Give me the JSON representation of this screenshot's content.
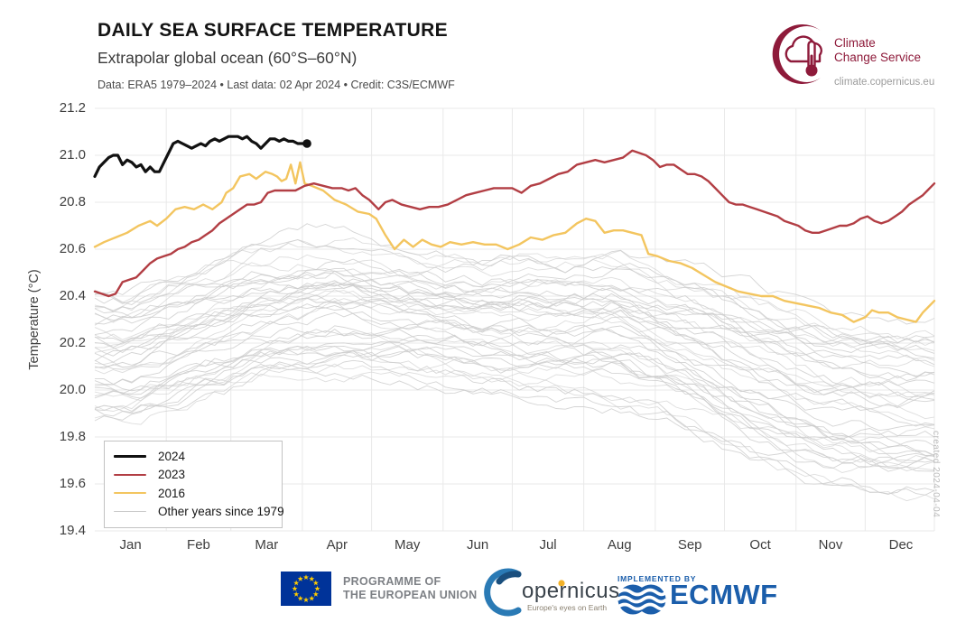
{
  "chart_data": {
    "type": "line",
    "title": "DAILY SEA SURFACE TEMPERATURE",
    "subtitle": "Extrapolar global ocean (60°S–60°N)",
    "meta": "Data: ERA5 1979–2024 • Last data: 02 Apr 2024 • Credit: C3S/ECMWF",
    "ylabel": "Temperature (°C)",
    "ylim": [
      19.4,
      21.2
    ],
    "yticks": [
      "21.2",
      "21.0",
      "20.8",
      "20.6",
      "20.4",
      "20.2",
      "20.0",
      "19.8",
      "19.6",
      "19.4"
    ],
    "xtick_labels": [
      "Jan",
      "Feb",
      "Mar",
      "Apr",
      "May",
      "Jun",
      "Jul",
      "Aug",
      "Sep",
      "Oct",
      "Nov",
      "Dec"
    ],
    "grid": true,
    "legend_position": "lower-left",
    "legend": [
      {
        "label": "2024",
        "color": "#111111",
        "width": 3.2
      },
      {
        "label": "2023",
        "color": "#b23e44",
        "width": 2.4
      },
      {
        "label": "2016",
        "color": "#f3c55f",
        "width": 2.4
      },
      {
        "label": "Other years since 1979",
        "color": "#c9c9c9",
        "width": 1
      }
    ],
    "series": [
      {
        "name": "2024",
        "color": "#111111",
        "width": 3.2,
        "end_dot": true,
        "x_day_of_year": [
          1,
          3,
          5,
          7,
          9,
          11,
          13,
          15,
          17,
          19,
          21,
          23,
          25,
          27,
          29,
          31,
          33,
          35,
          37,
          39,
          41,
          43,
          45,
          47,
          49,
          51,
          53,
          55,
          57,
          59,
          61,
          63,
          65,
          67,
          69,
          71,
          73,
          75,
          77,
          79,
          81,
          83,
          85,
          87,
          89,
          91,
          93
        ],
        "values": [
          20.91,
          20.95,
          20.97,
          20.99,
          21.0,
          21.0,
          20.96,
          20.98,
          20.97,
          20.95,
          20.96,
          20.93,
          20.95,
          20.93,
          20.93,
          20.97,
          21.01,
          21.05,
          21.06,
          21.05,
          21.04,
          21.03,
          21.04,
          21.05,
          21.04,
          21.06,
          21.07,
          21.06,
          21.07,
          21.08,
          21.08,
          21.08,
          21.07,
          21.08,
          21.06,
          21.05,
          21.03,
          21.05,
          21.07,
          21.07,
          21.06,
          21.07,
          21.06,
          21.06,
          21.05,
          21.05,
          21.05
        ]
      },
      {
        "name": "2023",
        "color": "#b23e44",
        "width": 2.4,
        "end_dot": false,
        "x_day_of_year": [
          1,
          4,
          7,
          10,
          13,
          16,
          19,
          22,
          25,
          28,
          31,
          34,
          37,
          40,
          43,
          46,
          49,
          52,
          55,
          58,
          61,
          64,
          67,
          70,
          73,
          76,
          79,
          82,
          85,
          88,
          92,
          96,
          100,
          104,
          108,
          111,
          114,
          117,
          120,
          124,
          127,
          130,
          134,
          138,
          142,
          146,
          150,
          154,
          158,
          162,
          166,
          170,
          174,
          178,
          182,
          186,
          190,
          194,
          198,
          202,
          206,
          210,
          214,
          218,
          222,
          226,
          230,
          234,
          237,
          240,
          243,
          246,
          249,
          252,
          255,
          258,
          261,
          264,
          267,
          270,
          273,
          276,
          279,
          282,
          285,
          288,
          291,
          294,
          297,
          300,
          303,
          306,
          309,
          312,
          315,
          318,
          321,
          324,
          327,
          330,
          333,
          336,
          339,
          342,
          345,
          348,
          351,
          354,
          357,
          360,
          362,
          364,
          365
        ],
        "values": [
          20.42,
          20.41,
          20.4,
          20.41,
          20.46,
          20.47,
          20.48,
          20.51,
          20.54,
          20.56,
          20.57,
          20.58,
          20.6,
          20.61,
          20.63,
          20.64,
          20.66,
          20.68,
          20.71,
          20.73,
          20.75,
          20.77,
          20.79,
          20.79,
          20.8,
          20.84,
          20.85,
          20.85,
          20.85,
          20.85,
          20.87,
          20.88,
          20.87,
          20.86,
          20.86,
          20.85,
          20.86,
          20.83,
          20.81,
          20.77,
          20.8,
          20.81,
          20.79,
          20.78,
          20.77,
          20.78,
          20.78,
          20.79,
          20.81,
          20.83,
          20.84,
          20.85,
          20.86,
          20.86,
          20.86,
          20.84,
          20.87,
          20.88,
          20.9,
          20.92,
          20.93,
          20.96,
          20.97,
          20.98,
          20.97,
          20.98,
          20.99,
          21.02,
          21.01,
          21.0,
          20.98,
          20.95,
          20.96,
          20.96,
          20.94,
          20.92,
          20.92,
          20.91,
          20.89,
          20.86,
          20.83,
          20.8,
          20.79,
          20.79,
          20.78,
          20.77,
          20.76,
          20.75,
          20.74,
          20.72,
          20.71,
          20.7,
          20.68,
          20.67,
          20.67,
          20.68,
          20.69,
          20.7,
          20.7,
          20.71,
          20.73,
          20.74,
          20.72,
          20.71,
          20.72,
          20.74,
          20.76,
          20.79,
          20.81,
          20.83,
          20.85,
          20.87,
          20.88
        ]
      },
      {
        "name": "2016",
        "color": "#f3c55f",
        "width": 2.4,
        "end_dot": false,
        "x_day_of_year": [
          1,
          5,
          10,
          15,
          20,
          25,
          28,
          32,
          36,
          40,
          44,
          48,
          52,
          56,
          58,
          61,
          64,
          68,
          71,
          75,
          78,
          80,
          82,
          84,
          86,
          88,
          90,
          92,
          95,
          100,
          105,
          110,
          115,
          120,
          123,
          127,
          131,
          135,
          139,
          143,
          147,
          151,
          155,
          160,
          165,
          170,
          175,
          180,
          185,
          190,
          195,
          200,
          205,
          210,
          214,
          218,
          222,
          226,
          230,
          234,
          238,
          241,
          245,
          250,
          255,
          260,
          265,
          270,
          275,
          280,
          285,
          290,
          295,
          300,
          305,
          310,
          315,
          320,
          325,
          330,
          335,
          338,
          341,
          345,
          349,
          353,
          357,
          360,
          363,
          365
        ],
        "values": [
          20.61,
          20.63,
          20.65,
          20.67,
          20.7,
          20.72,
          20.7,
          20.73,
          20.77,
          20.78,
          20.77,
          20.79,
          20.77,
          20.8,
          20.84,
          20.86,
          20.91,
          20.92,
          20.9,
          20.93,
          20.92,
          20.91,
          20.89,
          20.9,
          20.96,
          20.88,
          20.97,
          20.88,
          20.87,
          20.85,
          20.81,
          20.79,
          20.76,
          20.75,
          20.73,
          20.66,
          20.6,
          20.64,
          20.61,
          20.64,
          20.62,
          20.61,
          20.63,
          20.62,
          20.63,
          20.62,
          20.62,
          20.6,
          20.62,
          20.65,
          20.64,
          20.66,
          20.67,
          20.71,
          20.73,
          20.72,
          20.67,
          20.68,
          20.68,
          20.67,
          20.66,
          20.58,
          20.57,
          20.55,
          20.54,
          20.52,
          20.49,
          20.46,
          20.44,
          20.42,
          20.41,
          20.4,
          20.4,
          20.38,
          20.37,
          20.36,
          20.35,
          20.33,
          20.32,
          20.29,
          20.31,
          20.34,
          20.33,
          20.33,
          20.31,
          20.3,
          20.29,
          20.33,
          20.36,
          20.38
        ]
      }
    ],
    "other_years": {
      "label": "Other years since 1979",
      "count": 43,
      "color": "#cdcdcd",
      "month_mid_days": [
        15.5,
        45,
        74.5,
        105,
        135.5,
        166,
        196.5,
        227.5,
        258,
        288.5,
        319,
        349.5
      ],
      "envelope_center": [
        20.15,
        20.24,
        20.32,
        20.36,
        20.32,
        20.28,
        20.28,
        20.28,
        20.18,
        20.05,
        19.95,
        19.93
      ],
      "envelope_half_width": [
        0.3,
        0.3,
        0.3,
        0.32,
        0.3,
        0.3,
        0.32,
        0.35,
        0.36,
        0.38,
        0.4,
        0.4
      ]
    }
  },
  "branding": {
    "c3s_line1": "Climate",
    "c3s_line2": "Change Service",
    "c3s_url": "climate.copernicus.eu"
  },
  "watermark": "created 2024-04-04",
  "footer": {
    "eu_line1": "PROGRAMME OF",
    "eu_line2": "THE EUROPEAN UNION",
    "copernicus_word": "opernicus",
    "copernicus_tagline": "Europe's eyes on Earth",
    "implemented_by": "IMPLEMENTED BY",
    "ecmwf": "ECMWF"
  },
  "colors": {
    "c3s_maroon": "#8e1a3a",
    "eu_blue": "#003399",
    "eu_star_yellow": "#ffcc00",
    "copernicus_blue": "#2a7ab5",
    "copernicus_dot_yellow": "#f3b229",
    "ecmwf_blue": "#1b5eab",
    "grid": "#e9e9e9"
  }
}
